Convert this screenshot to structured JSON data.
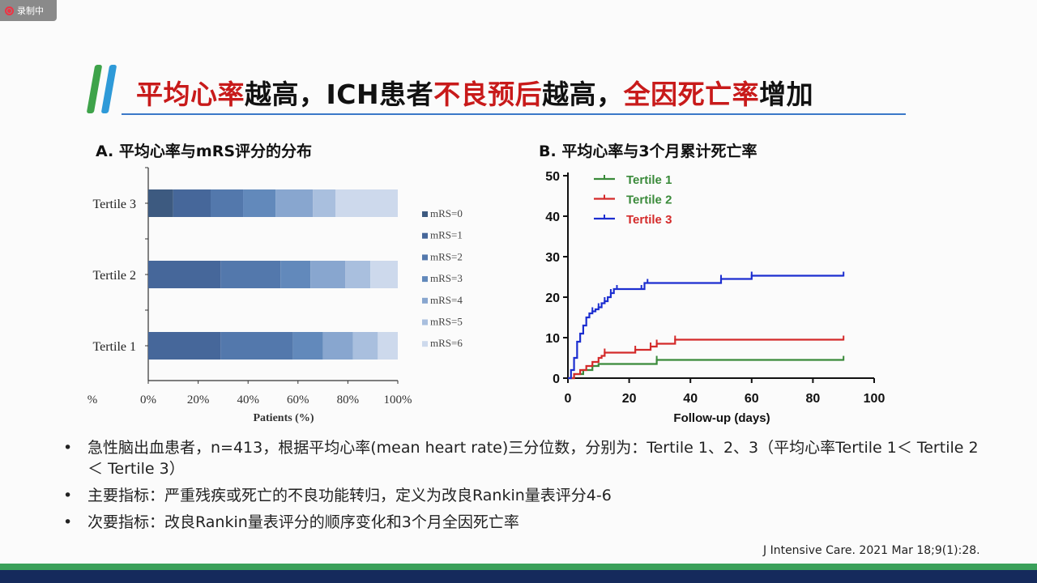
{
  "recorder": {
    "label": "录制中"
  },
  "title": {
    "parts": [
      {
        "text": "平均心率",
        "highlight": true
      },
      {
        "text": "越高，ICH患者",
        "highlight": false
      },
      {
        "text": "不良预后",
        "highlight": true
      },
      {
        "text": "越高，",
        "highlight": false
      },
      {
        "text": "全因死亡率",
        "highlight": true
      },
      {
        "text": "增加",
        "highlight": false
      }
    ],
    "highlight_color": "#c81a1a"
  },
  "panel_a": {
    "title": "A. 平均心率与mRS评分的分布"
  },
  "panel_b": {
    "title": "B. 平均心率与3个月累计死亡率"
  },
  "chart_data": [
    {
      "type": "bar",
      "orientation": "horizontal-stacked",
      "categories": [
        "Tertile 3",
        "Tertile 2",
        "Tertile 1"
      ],
      "series": [
        {
          "name": "mRS=0",
          "values": [
            10,
            0,
            0
          ],
          "color": "#3d5a80"
        },
        {
          "name": "mRS=1",
          "values": [
            15,
            29,
            29
          ],
          "color": "#46679a"
        },
        {
          "name": "mRS=2",
          "values": [
            13,
            24,
            29
          ],
          "color": "#5378ac"
        },
        {
          "name": "mRS=3",
          "values": [
            13,
            12,
            12
          ],
          "color": "#6289bb"
        },
        {
          "name": "mRS=4",
          "values": [
            15,
            14,
            12
          ],
          "color": "#88a6cf"
        },
        {
          "name": "mRS=5",
          "values": [
            9,
            10,
            10
          ],
          "color": "#a9bfde"
        },
        {
          "name": "mRS=6",
          "values": [
            25,
            11,
            8
          ],
          "color": "#cdd9ec"
        }
      ],
      "xticks": [
        "0%",
        "20%",
        "40%",
        "60%",
        "80%",
        "100%"
      ],
      "xlabel": "Patients (%)",
      "xlabel_prefix": "%",
      "xlim": [
        0,
        100
      ],
      "legend": "right"
    },
    {
      "type": "line",
      "subtype": "step",
      "xlabel": "Follow-up (days)",
      "xlim": [
        0,
        100
      ],
      "ylim": [
        0,
        50
      ],
      "xticks": [
        0,
        20,
        40,
        60,
        80,
        100
      ],
      "yticks": [
        0,
        10,
        20,
        30,
        40,
        50
      ],
      "legend": "top-left",
      "series": [
        {
          "name": "Tertile 1",
          "color": "#3a8a3a",
          "label_color": "#3a8a3a",
          "x": [
            0,
            2,
            5,
            8,
            10,
            29,
            90
          ],
          "y": [
            0,
            1,
            2,
            3,
            3.5,
            4.5,
            4.5
          ],
          "censor_x": [
            29,
            90
          ]
        },
        {
          "name": "Tertile 2",
          "color": "#d42a2a",
          "label_color": "#3a8a3a",
          "x": [
            0,
            2,
            4,
            6,
            8,
            10,
            11,
            12,
            22,
            27,
            29,
            35,
            90
          ],
          "y": [
            0,
            1,
            2,
            3,
            4,
            5,
            5.5,
            6.3,
            7,
            7.8,
            8.5,
            9.5,
            9.5
          ],
          "censor_x": [
            12,
            22,
            27,
            29,
            35,
            90
          ]
        },
        {
          "name": "Tertile 3",
          "color": "#1c2ed0",
          "label_color": "#d42a2a",
          "x": [
            0,
            1,
            2,
            3,
            4,
            5,
            6,
            7,
            8,
            9,
            10,
            11,
            12,
            13,
            14,
            15,
            16,
            25,
            50,
            60,
            90
          ],
          "y": [
            0,
            2,
            5,
            9,
            11,
            13,
            15,
            16,
            16.5,
            17,
            17.5,
            18.5,
            19,
            20,
            21,
            22,
            22,
            23.5,
            24.5,
            25.3,
            25.3
          ],
          "censor_x": [
            8,
            10,
            12,
            14,
            16,
            24,
            26,
            50,
            60,
            90
          ]
        }
      ]
    }
  ],
  "bullets": [
    "急性脑出血患者，n=413，根据平均心率(mean heart rate)三分位数，分别为：Tertile 1、2、3（平均心率Tertile 1＜ Tertile 2＜ Tertile 3）",
    "主要指标：严重残疾或死亡的不良功能转归，定义为改良Rankin量表评分4-6",
    "次要指标：改良Rankin量表评分的顺序变化和3个月全因死亡率"
  ],
  "citation": "J Intensive Care. 2021 Mar 18;9(1):28."
}
